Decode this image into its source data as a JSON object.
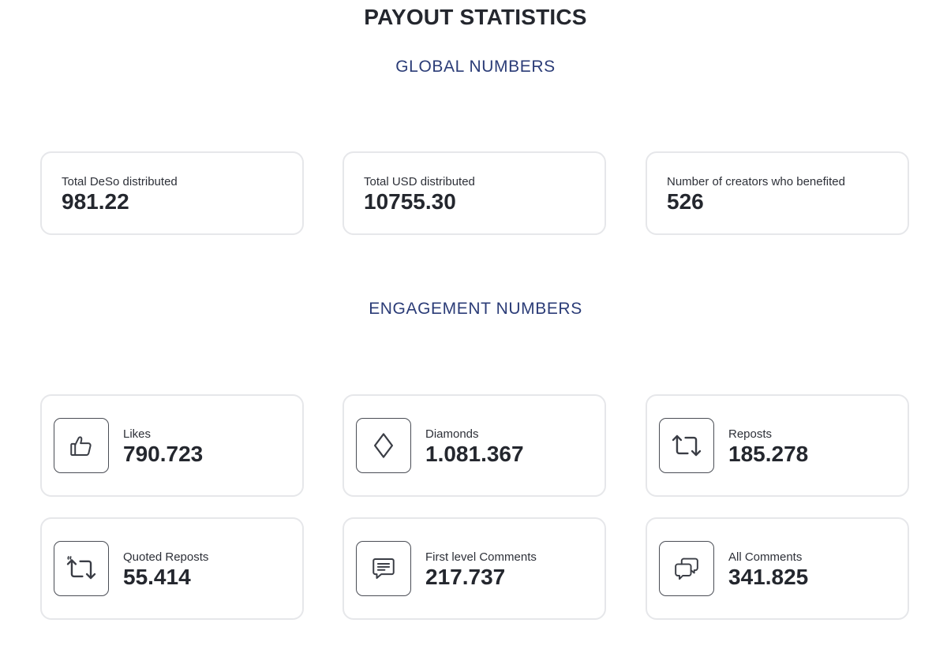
{
  "page": {
    "title": "PAYOUT STATISTICS"
  },
  "global": {
    "heading": "GLOBAL NUMBERS",
    "stats": [
      {
        "label": "Total DeSo distributed",
        "value": "981.22"
      },
      {
        "label": "Total USD distributed",
        "value": "10755.30"
      },
      {
        "label": "Number of creators who benefited",
        "value": "526"
      }
    ]
  },
  "engagement": {
    "heading": "ENGAGEMENT NUMBERS",
    "items": [
      {
        "icon": "thumbs-up-icon",
        "label": "Likes",
        "value": "790.723"
      },
      {
        "icon": "diamond-icon",
        "label": "Diamonds",
        "value": "1.081.367"
      },
      {
        "icon": "repost-icon",
        "label": "Reposts",
        "value": "185.278"
      },
      {
        "icon": "quote-repost-icon",
        "label": "Quoted Reposts",
        "value": "55.414"
      },
      {
        "icon": "comment-icon",
        "label": "First level Comments",
        "value": "217.737"
      },
      {
        "icon": "comments-icon",
        "label": "All Comments",
        "value": "341.825"
      }
    ]
  },
  "colors": {
    "heading": "#24272e",
    "section_heading": "#2b3c77",
    "card_border": "#e6e7ea",
    "icon_stroke": "#3a3d45"
  }
}
